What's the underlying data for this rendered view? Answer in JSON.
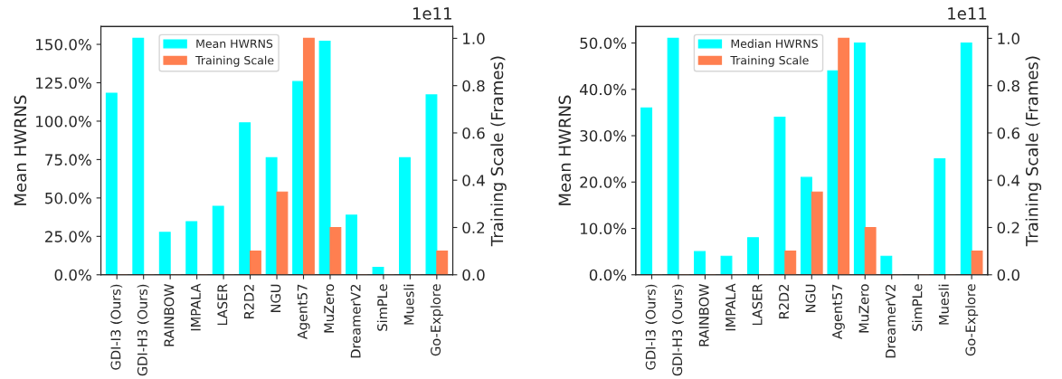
{
  "chart_data": [
    {
      "type": "bar",
      "ylabel": "Mean HWRNS",
      "y2label": "Training Scale (Frames)",
      "categories": [
        "GDI-I3 (Ours)",
        "GDI-H3 (Ours)",
        "RAINBOW",
        "IMPALA",
        "LASER",
        "R2D2",
        "NGU",
        "Agent57",
        "MuZero",
        "DreamerV2",
        "SimPLe",
        "Muesli",
        "Go-Explore"
      ],
      "series": [
        {
          "name": "Mean HWRNS",
          "color": "#00ffff",
          "values": [
            118.2,
            153.9,
            27.6,
            34.6,
            44.6,
            98.9,
            76.2,
            125.8,
            152.1,
            38.8,
            4.9,
            76.2,
            117.1
          ]
        },
        {
          "name": "Training Scale",
          "color": "#ff7f50",
          "axis": "y2",
          "values": [
            0,
            0,
            0,
            0,
            0,
            0.1,
            0.35,
            1.0,
            0.2,
            0,
            0,
            0,
            0.1
          ]
        }
      ],
      "ylim": [
        0,
        161.6
      ],
      "yticks": [
        {
          "value": 0,
          "label": "0.0%"
        },
        {
          "value": 25,
          "label": "25.0%"
        },
        {
          "value": 50,
          "label": "50.0%"
        },
        {
          "value": 75,
          "label": "75.0%"
        },
        {
          "value": 100,
          "label": "100.0%"
        },
        {
          "value": 125,
          "label": "125.0%"
        },
        {
          "value": 150,
          "label": "150.0%"
        }
      ],
      "y2lim": [
        0,
        1.05
      ],
      "y2ticks": [
        {
          "value": 0,
          "label": "0.0"
        },
        {
          "value": 0.2,
          "label": "0.2"
        },
        {
          "value": 0.4,
          "label": "0.4"
        },
        {
          "value": 0.6,
          "label": "0.6"
        },
        {
          "value": 0.8,
          "label": "0.8"
        },
        {
          "value": 1.0,
          "label": "1.0"
        }
      ],
      "annotations": [
        "1e11"
      ],
      "legend": "top left",
      "grid": false
    },
    {
      "type": "bar",
      "ylabel": "Mean HWRNS",
      "y2label": "Training Scale (Frames)",
      "categories": [
        "GDI-I3 (Ours)",
        "GDI-H3 (Ours)",
        "RAINBOW",
        "IMPALA",
        "LASER",
        "R2D2",
        "NGU",
        "Agent57",
        "MuZero",
        "DreamerV2",
        "SimPLe",
        "Muesli",
        "Go-Explore"
      ],
      "series": [
        {
          "name": "Median HWRNS",
          "color": "#00ffff",
          "values": [
            36,
            51,
            5,
            4,
            8,
            34,
            21,
            44,
            50,
            4,
            0,
            25,
            50
          ]
        },
        {
          "name": "Training Scale",
          "color": "#ff7f50",
          "axis": "y2",
          "values": [
            0,
            0,
            0,
            0,
            0,
            0.1,
            0.35,
            1.0,
            0.2,
            0,
            0,
            0,
            0.1
          ]
        }
      ],
      "ylim": [
        0,
        53.55
      ],
      "yticks": [
        {
          "value": 0,
          "label": "0.0%"
        },
        {
          "value": 10,
          "label": "10.0%"
        },
        {
          "value": 20,
          "label": "20.0%"
        },
        {
          "value": 30,
          "label": "30.0%"
        },
        {
          "value": 40,
          "label": "40.0%"
        },
        {
          "value": 50,
          "label": "50.0%"
        }
      ],
      "y2lim": [
        0,
        1.05
      ],
      "y2ticks": [
        {
          "value": 0,
          "label": "0.0"
        },
        {
          "value": 0.2,
          "label": "0.2"
        },
        {
          "value": 0.4,
          "label": "0.4"
        },
        {
          "value": 0.6,
          "label": "0.6"
        },
        {
          "value": 0.8,
          "label": "0.8"
        },
        {
          "value": 1.0,
          "label": "1.0"
        }
      ],
      "annotations": [
        "1e11"
      ],
      "legend": "top left",
      "grid": false
    }
  ]
}
